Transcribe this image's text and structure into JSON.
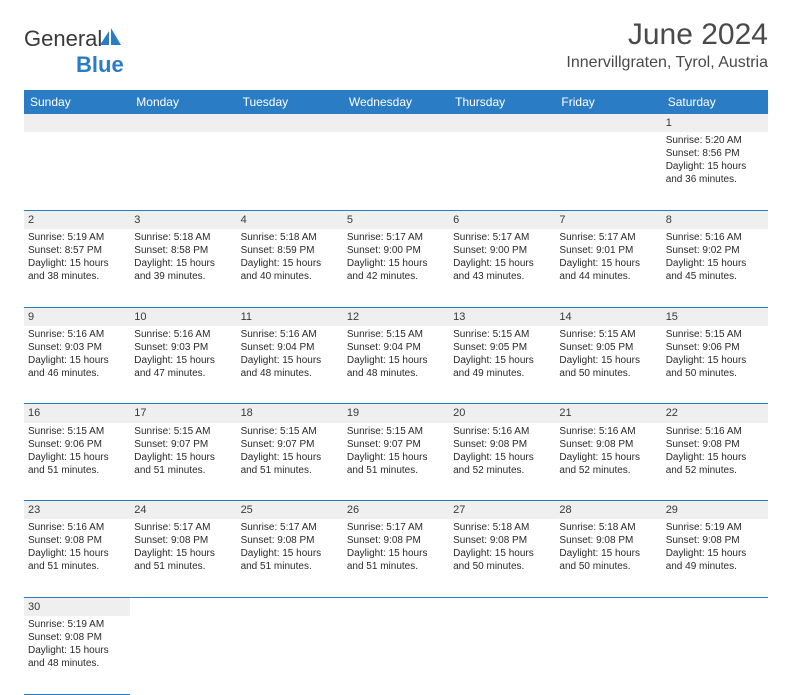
{
  "brand": {
    "name_part1": "General",
    "name_part2": "Blue"
  },
  "title": {
    "month": "June 2024",
    "location": "Innervillgraten, Tyrol, Austria"
  },
  "colors": {
    "header_bg": "#2a7dc4",
    "header_text": "#ffffff",
    "daynum_bg": "#efefef",
    "row_border": "#2a7dc4",
    "text": "#2a2a2a",
    "title_text": "#4a4a4a"
  },
  "weekdays": [
    "Sunday",
    "Monday",
    "Tuesday",
    "Wednesday",
    "Thursday",
    "Friday",
    "Saturday"
  ],
  "weeks": [
    {
      "days": [
        null,
        null,
        null,
        null,
        null,
        null,
        {
          "n": "1",
          "sunrise": "5:20 AM",
          "sunset": "8:56 PM",
          "daylight": "15 hours and 36 minutes."
        }
      ]
    },
    {
      "days": [
        {
          "n": "2",
          "sunrise": "5:19 AM",
          "sunset": "8:57 PM",
          "daylight": "15 hours and 38 minutes."
        },
        {
          "n": "3",
          "sunrise": "5:18 AM",
          "sunset": "8:58 PM",
          "daylight": "15 hours and 39 minutes."
        },
        {
          "n": "4",
          "sunrise": "5:18 AM",
          "sunset": "8:59 PM",
          "daylight": "15 hours and 40 minutes."
        },
        {
          "n": "5",
          "sunrise": "5:17 AM",
          "sunset": "9:00 PM",
          "daylight": "15 hours and 42 minutes."
        },
        {
          "n": "6",
          "sunrise": "5:17 AM",
          "sunset": "9:00 PM",
          "daylight": "15 hours and 43 minutes."
        },
        {
          "n": "7",
          "sunrise": "5:17 AM",
          "sunset": "9:01 PM",
          "daylight": "15 hours and 44 minutes."
        },
        {
          "n": "8",
          "sunrise": "5:16 AM",
          "sunset": "9:02 PM",
          "daylight": "15 hours and 45 minutes."
        }
      ]
    },
    {
      "days": [
        {
          "n": "9",
          "sunrise": "5:16 AM",
          "sunset": "9:03 PM",
          "daylight": "15 hours and 46 minutes."
        },
        {
          "n": "10",
          "sunrise": "5:16 AM",
          "sunset": "9:03 PM",
          "daylight": "15 hours and 47 minutes."
        },
        {
          "n": "11",
          "sunrise": "5:16 AM",
          "sunset": "9:04 PM",
          "daylight": "15 hours and 48 minutes."
        },
        {
          "n": "12",
          "sunrise": "5:15 AM",
          "sunset": "9:04 PM",
          "daylight": "15 hours and 48 minutes."
        },
        {
          "n": "13",
          "sunrise": "5:15 AM",
          "sunset": "9:05 PM",
          "daylight": "15 hours and 49 minutes."
        },
        {
          "n": "14",
          "sunrise": "5:15 AM",
          "sunset": "9:05 PM",
          "daylight": "15 hours and 50 minutes."
        },
        {
          "n": "15",
          "sunrise": "5:15 AM",
          "sunset": "9:06 PM",
          "daylight": "15 hours and 50 minutes."
        }
      ]
    },
    {
      "days": [
        {
          "n": "16",
          "sunrise": "5:15 AM",
          "sunset": "9:06 PM",
          "daylight": "15 hours and 51 minutes."
        },
        {
          "n": "17",
          "sunrise": "5:15 AM",
          "sunset": "9:07 PM",
          "daylight": "15 hours and 51 minutes."
        },
        {
          "n": "18",
          "sunrise": "5:15 AM",
          "sunset": "9:07 PM",
          "daylight": "15 hours and 51 minutes."
        },
        {
          "n": "19",
          "sunrise": "5:15 AM",
          "sunset": "9:07 PM",
          "daylight": "15 hours and 51 minutes."
        },
        {
          "n": "20",
          "sunrise": "5:16 AM",
          "sunset": "9:08 PM",
          "daylight": "15 hours and 52 minutes."
        },
        {
          "n": "21",
          "sunrise": "5:16 AM",
          "sunset": "9:08 PM",
          "daylight": "15 hours and 52 minutes."
        },
        {
          "n": "22",
          "sunrise": "5:16 AM",
          "sunset": "9:08 PM",
          "daylight": "15 hours and 52 minutes."
        }
      ]
    },
    {
      "days": [
        {
          "n": "23",
          "sunrise": "5:16 AM",
          "sunset": "9:08 PM",
          "daylight": "15 hours and 51 minutes."
        },
        {
          "n": "24",
          "sunrise": "5:17 AM",
          "sunset": "9:08 PM",
          "daylight": "15 hours and 51 minutes."
        },
        {
          "n": "25",
          "sunrise": "5:17 AM",
          "sunset": "9:08 PM",
          "daylight": "15 hours and 51 minutes."
        },
        {
          "n": "26",
          "sunrise": "5:17 AM",
          "sunset": "9:08 PM",
          "daylight": "15 hours and 51 minutes."
        },
        {
          "n": "27",
          "sunrise": "5:18 AM",
          "sunset": "9:08 PM",
          "daylight": "15 hours and 50 minutes."
        },
        {
          "n": "28",
          "sunrise": "5:18 AM",
          "sunset": "9:08 PM",
          "daylight": "15 hours and 50 minutes."
        },
        {
          "n": "29",
          "sunrise": "5:19 AM",
          "sunset": "9:08 PM",
          "daylight": "15 hours and 49 minutes."
        }
      ]
    },
    {
      "days": [
        {
          "n": "30",
          "sunrise": "5:19 AM",
          "sunset": "9:08 PM",
          "daylight": "15 hours and 48 minutes."
        },
        null,
        null,
        null,
        null,
        null,
        null
      ]
    }
  ],
  "labels": {
    "sunrise": "Sunrise:",
    "sunset": "Sunset:",
    "daylight": "Daylight:"
  }
}
